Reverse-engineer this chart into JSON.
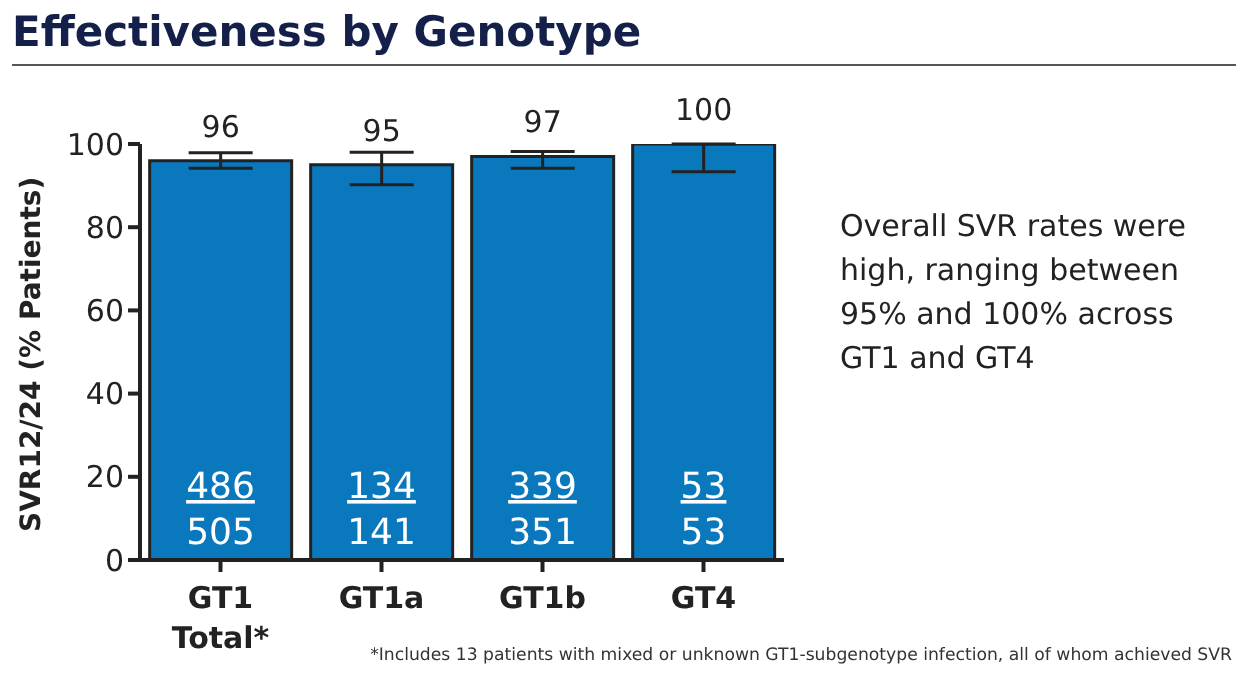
{
  "chart_data": {
    "type": "bar",
    "title": "Effectiveness by Genotype",
    "ylabel": "SVR12/24 (% Patients)",
    "categories": [
      "GT1 Total*",
      "GT1a",
      "GT1b",
      "GT4"
    ],
    "values": [
      96,
      95,
      97,
      100
    ],
    "errors": [
      [
        94.2,
        97.9
      ],
      [
        90.2,
        98
      ],
      [
        94.2,
        98.2
      ],
      [
        93.3,
        100
      ]
    ],
    "color": "#0a78bd",
    "data_labels": true,
    "grid": false,
    "legend": false,
    "ylim": [
      0,
      100
    ],
    "yticks": [
      0,
      20,
      40,
      60,
      80,
      100
    ],
    "annotations": [
      "486\n505",
      "134\n141",
      "339\n351",
      "53\n53",
      "Overall SVR rates were high, ranging between 95% and 100% across GT1 and GT4",
      "*Includes 13 patients with mixed or unknown GT1-subgenotype infection, all of whom achieved SVR"
    ]
  }
}
